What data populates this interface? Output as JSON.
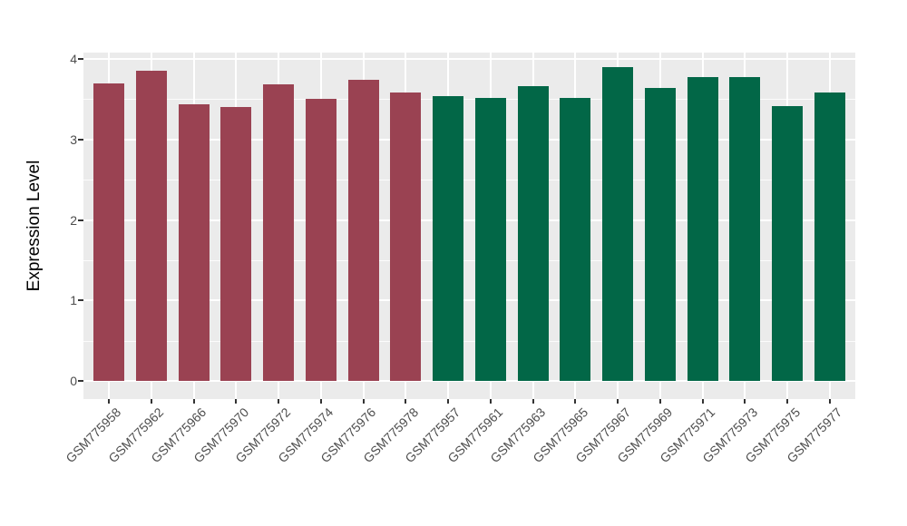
{
  "chart_data": {
    "type": "bar",
    "title": "",
    "xlabel": "",
    "ylabel": "Expression Level",
    "ylim": [
      0,
      4.1
    ],
    "yticks": [
      0,
      1,
      2,
      3,
      4
    ],
    "grid": "white major gridlines at integers, minor at halves, vertical at bar centers, on gray panel",
    "legend": "none",
    "panel_background": "#EBEBEB",
    "gridline_color": "#FFFFFF",
    "tick_label_color": "#4D4D4D",
    "axis_title_color": "#000000",
    "palette": {
      "maroon": "#9A4252",
      "green": "#026747"
    },
    "categories": [
      "GSM775958",
      "GSM775962",
      "GSM775966",
      "GSM775970",
      "GSM775972",
      "GSM775974",
      "GSM775976",
      "GSM775978",
      "GSM775957",
      "GSM775961",
      "GSM775963",
      "GSM775965",
      "GSM775967",
      "GSM775969",
      "GSM775971",
      "GSM775973",
      "GSM775975",
      "GSM775977"
    ],
    "values": [
      3.7,
      3.85,
      3.44,
      3.4,
      3.69,
      3.5,
      3.74,
      3.58,
      3.54,
      3.52,
      3.66,
      3.51,
      3.9,
      3.64,
      3.78,
      3.77,
      3.41,
      3.58
    ],
    "groups": [
      "maroon",
      "maroon",
      "maroon",
      "maroon",
      "maroon",
      "maroon",
      "maroon",
      "maroon",
      "green",
      "green",
      "green",
      "green",
      "green",
      "green",
      "green",
      "green",
      "green",
      "green"
    ]
  }
}
